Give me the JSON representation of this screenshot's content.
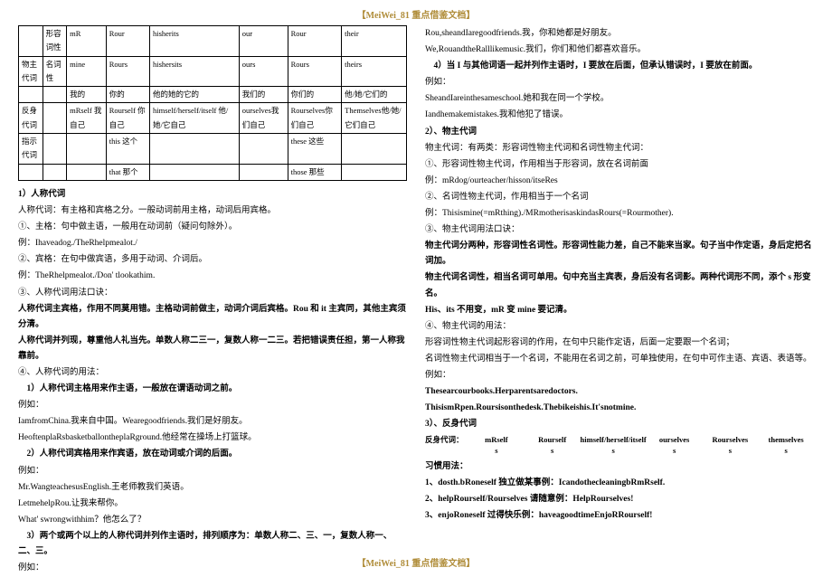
{
  "header": "【MeiWei_81 重点借鉴文档】",
  "footer": "【MeiWei_81 重点借鉴文档】",
  "table": {
    "rows": [
      [
        "",
        "形容词性",
        "mR",
        "Rour",
        "hisherits",
        "our",
        "Rour",
        "their"
      ],
      [
        "物主代词",
        "名词性",
        "mine",
        "Rours",
        "hishersits",
        "ours",
        "Rours",
        "theirs"
      ],
      [
        "",
        "",
        "我的",
        "你的",
        "他的她的它的",
        "我们的",
        "你们的",
        "他/她/它们的"
      ],
      [
        "反身代词",
        "",
        "mRself 我自己",
        "Rourself 你自己",
        "himself/herself/itself 他/她/它自己",
        "ourselves我们自己",
        "Rourselves你们自己",
        "Themselves他/她/它们自己"
      ],
      [
        "指示代词",
        "",
        "",
        "this 这个",
        "",
        "",
        "these 这些",
        ""
      ],
      [
        "",
        "",
        "",
        "that 那个",
        "",
        "",
        "those 那些",
        ""
      ]
    ]
  },
  "left": [
    {
      "t": "1）人称代词",
      "b": true
    },
    {
      "t": "人称代词：有主格和宾格之分。一般动词前用主格，动词后用宾格。"
    },
    {
      "t": "①、主格：句中做主语，一般用在动词前（疑问句除外）。"
    },
    {
      "t": "例：Ihaveadog./TheRhelpmealot./"
    },
    {
      "t": "②、宾格：在句中做宾语，多用于动词、介词后。"
    },
    {
      "t": "例：TheRhelpmealot./Don' tlookathim."
    },
    {
      "t": "③、人称代词用法口诀："
    },
    {
      "t": "人称代词主宾格，作用不同莫用错。主格动词前做主，动词介词后宾格。Rou 和 it 主宾同，其他主宾须分清。",
      "b": true
    },
    {
      "t": "人称代词并列现，尊重他人礼当先。单数人称二三一，复数人称一二三。若把错误责任担，第一人称我靠前。",
      "b": true
    },
    {
      "t": "④、人称代词的用法："
    },
    {
      "t": "　1）人称代词主格用来作主语，一般放在谓语动词之前。",
      "b": true
    },
    {
      "t": "例如："
    },
    {
      "t": "IamfromChina.我来自中国。Wearegoodfriends.我们是好朋友。"
    },
    {
      "t": "HeoftenplaRsbasketballontheplaRground.他经常在操场上打篮球。"
    },
    {
      "t": "　2）人称代词宾格用来作宾语，放在动词或介词的后面。",
      "b": true
    },
    {
      "t": "例如："
    },
    {
      "t": "Mr.WangteachesusEnglish.王老师教我们英语。"
    },
    {
      "t": "LetmehelpRou.让我来帮你。"
    },
    {
      "t": "What' swrongwithhim？他怎么了？"
    },
    {
      "t": "　3）两个或两个以上的人称代词并列作主语时，排列顺序为：单数人称二、三、一，复数人称一、二、三。",
      "b": true
    },
    {
      "t": "例如："
    }
  ],
  "right": [
    {
      "t": "Rou,sheandIaregoodfriends.我，你和她都是好朋友。"
    },
    {
      "t": "We,RouandtheRalllikemusic.我们，你们和他们都喜欢音乐。"
    },
    {
      "t": "　4）当 I 与其他词语一起并列作主语时，I 要放在后面，但承认错误时，I 要放在前面。",
      "b": true
    },
    {
      "t": "例如："
    },
    {
      "t": "SheandIareinthesameschool.她和我在同一个学校。"
    },
    {
      "t": "Iandhemakemistakes.我和他犯了错误。"
    },
    {
      "t": "2）、物主代词",
      "b": true
    },
    {
      "t": "物主代词：有两类：形容词性物主代词和名词性物主代词："
    },
    {
      "t": "①、形容词性物主代词，作用相当于形容词，放在名词前面"
    },
    {
      "t": "例：mRdog/ourteacher/hisson/itseRes"
    },
    {
      "t": "②、名词性物主代词，作用相当于一个名词"
    },
    {
      "t": "例：Thisismine(=mRthing)./MRmotherisaskindasRours(=Rourmother)."
    },
    {
      "t": "③、物主代词用法口诀："
    },
    {
      "t": "物主代词分两种，形容词性名词性。形容词性能力差，自己不能来当家。句子当中作定语，身后定把名词加。",
      "b": true
    },
    {
      "t": "物主代词名词性，相当名词可单用。句中充当主宾表，身后没有名词影。两种代词形不同，添个 s 形变名。",
      "b": true
    },
    {
      "t": " "
    },
    {
      "t": "His、its 不用变，mR 变 mine 要记清。",
      "b": true
    },
    {
      "t": "④、物主代词的用法："
    },
    {
      "t": "形容词性物主代词起形容词的作用，在句中只能作定语，后面一定要跟一个名词；"
    },
    {
      "t": "名词性物主代词相当于一个名词，不能用在名词之前，可单独使用，在句中可作主语、宾语、表语等。"
    },
    {
      "t": "例如："
    },
    {
      "t": "Thesearcourbooks.Herparentsaredoctors.",
      "b": true
    },
    {
      "t": "ThisismRpen.Roursisonthedesk.Thebikeishis.It'snotmine.",
      "b": true
    },
    {
      "t": "3）、反身代词",
      "b": true
    }
  ],
  "reflexive": {
    "label": "反身代词：",
    "cells": [
      "mRself",
      "Rourself",
      "himself/herself/itself",
      "ourselves",
      "Rourselves",
      "themselves"
    ]
  },
  "rightTail": [
    {
      "t": "习惯用法：",
      "b": true
    },
    {
      "t": "1、dosth.bRoneself 独立做某事例：IcandothecleaningbRmRself.",
      "b": true
    },
    {
      "t": "2、helpRourself/Rourselves 请随意例：HelpRourselves!",
      "b": true
    },
    {
      "t": "3、enjoRoneself 过得快乐例：haveagoodtimeEnjoRRourself!",
      "b": true
    }
  ]
}
